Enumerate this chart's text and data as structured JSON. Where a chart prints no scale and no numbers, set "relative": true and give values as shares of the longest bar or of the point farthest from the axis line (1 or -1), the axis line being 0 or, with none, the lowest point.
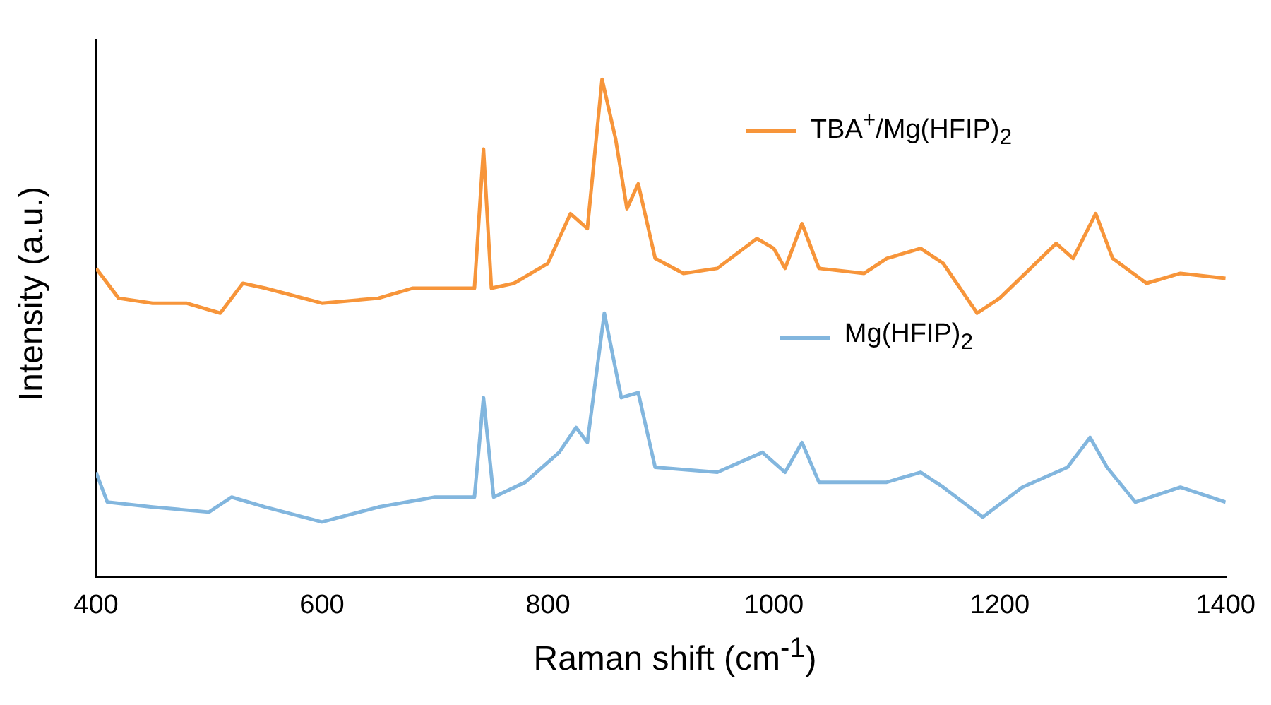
{
  "chart_data": {
    "type": "line",
    "xlabel": "Raman shift (cm$^{-1}$)",
    "ylabel": "Intensity (a.u.)",
    "relative": true,
    "xlim": [
      400,
      1400
    ],
    "xticks": [
      400,
      600,
      800,
      1000,
      1200,
      1400
    ],
    "legend": "right",
    "grid": false,
    "marker": "none",
    "line_style": "solid",
    "x": [
      400,
      420,
      450,
      480,
      510,
      530,
      550,
      600,
      650,
      680,
      720,
      735,
      743,
      750,
      770,
      800,
      820,
      835,
      848,
      860,
      870,
      880,
      895,
      920,
      950,
      985,
      1000,
      1010,
      1025,
      1040,
      1080,
      1100,
      1130,
      1150,
      1180,
      1200,
      1250,
      1265,
      1285,
      1300,
      1330,
      1360,
      1400
    ],
    "series": [
      {
        "name": "TBA$^{+}$/Mg(HFIP)$_{2}$",
        "color": "#f7953a",
        "values": [
          0.62,
          0.56,
          0.55,
          0.55,
          0.53,
          0.59,
          0.58,
          0.55,
          0.56,
          0.58,
          0.58,
          0.58,
          0.86,
          0.58,
          0.59,
          0.63,
          0.73,
          0.7,
          1,
          0.88,
          0.74,
          0.79,
          0.64,
          0.61,
          0.62,
          0.68,
          0.66,
          0.62,
          0.71,
          0.62,
          0.61,
          0.64,
          0.66,
          0.63,
          0.53,
          0.56,
          0.67,
          0.64,
          0.73,
          0.64,
          0.59,
          0.61,
          0.6
        ]
      },
      {
        "name": "Mg(HFIP)$_{2}$",
        "color": "#82b6de",
        "x": [
          400,
          410,
          450,
          500,
          520,
          550,
          600,
          650,
          700,
          735,
          743,
          752,
          780,
          810,
          825,
          835,
          850,
          865,
          880,
          895,
          950,
          990,
          1010,
          1025,
          1040,
          1100,
          1130,
          1150,
          1185,
          1220,
          1260,
          1280,
          1295,
          1320,
          1360,
          1400
        ],
        "values": [
          0.21,
          0.15,
          0.14,
          0.13,
          0.16,
          0.14,
          0.11,
          0.14,
          0.16,
          0.16,
          0.36,
          0.16,
          0.19,
          0.25,
          0.3,
          0.27,
          0.53,
          0.36,
          0.37,
          0.22,
          0.21,
          0.25,
          0.21,
          0.27,
          0.19,
          0.19,
          0.21,
          0.18,
          0.12,
          0.18,
          0.22,
          0.28,
          0.22,
          0.15,
          0.18,
          0.15
        ]
      }
    ]
  }
}
